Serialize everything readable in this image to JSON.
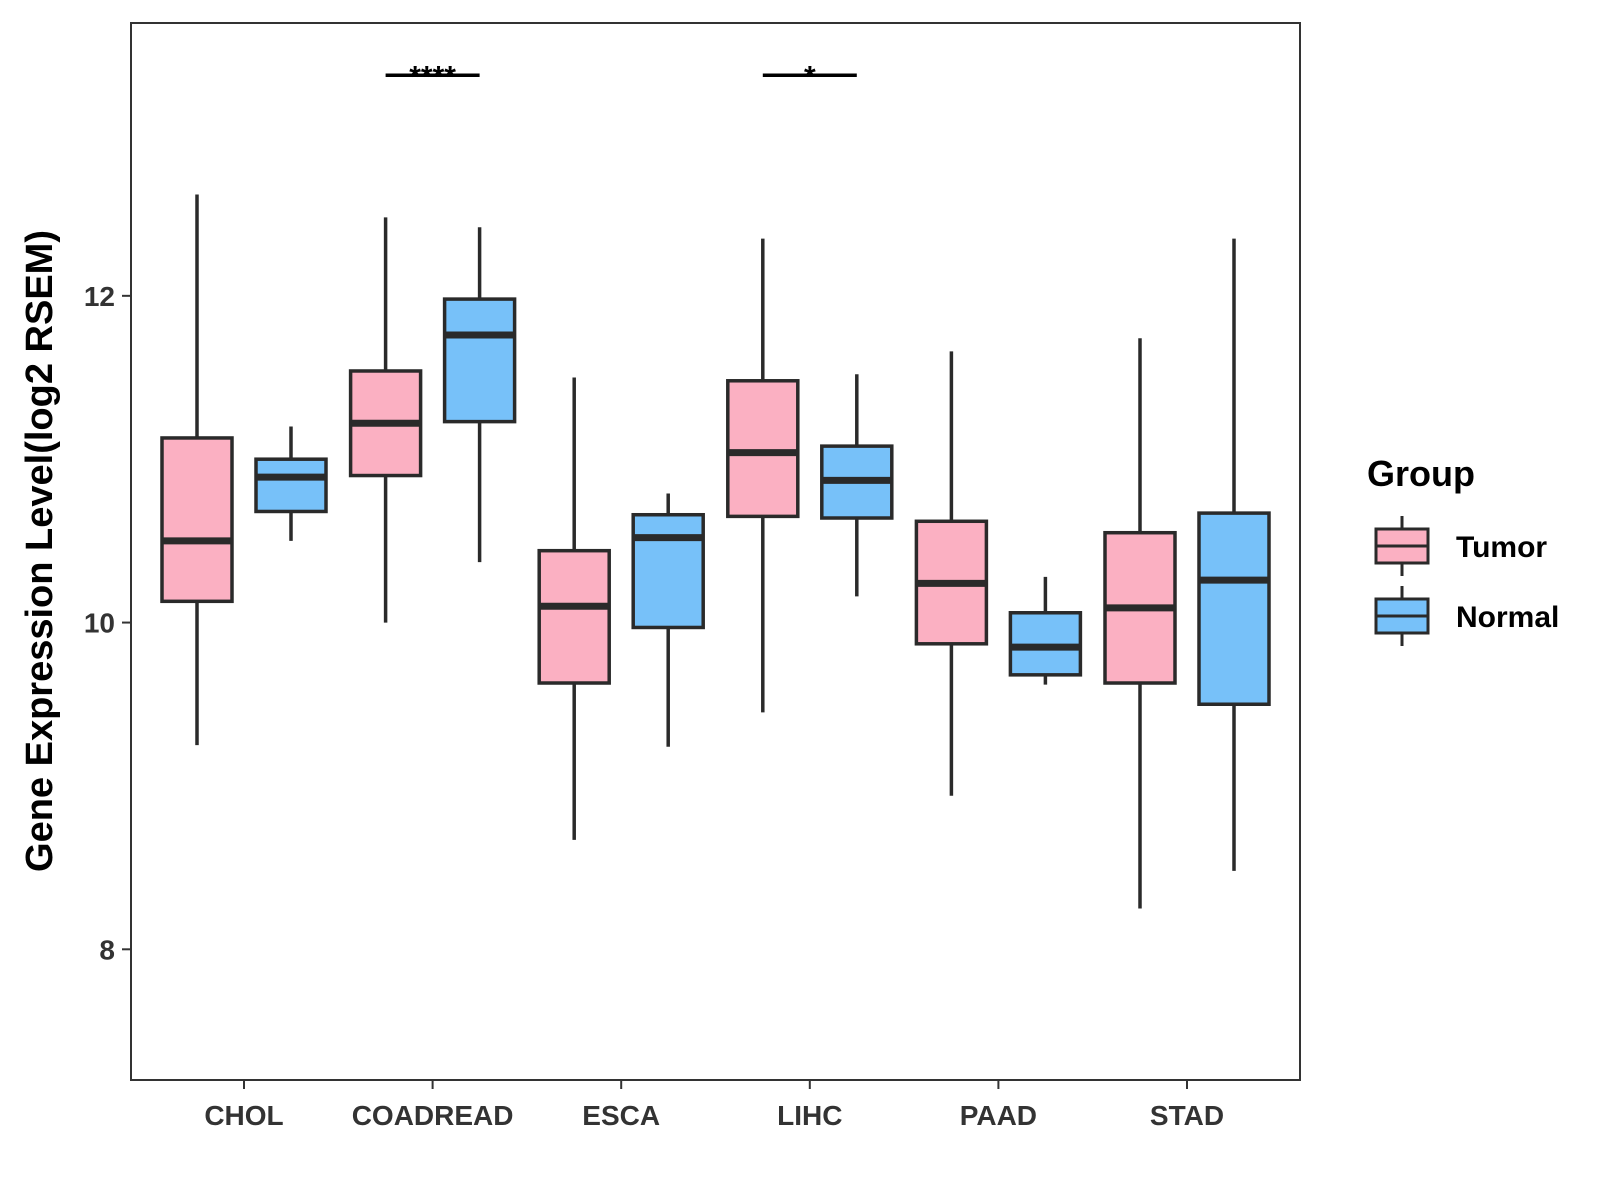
{
  "chart_data": {
    "type": "boxplot",
    "title": "",
    "xlabel": "",
    "ylabel": "Gene Expression Level(log2 RSEM)",
    "ylim": [
      7.2,
      13.67
    ],
    "yticks": [
      8,
      10,
      12
    ],
    "grid": false,
    "legend": {
      "title": "Group",
      "position": "right"
    },
    "categories": [
      "CHOL",
      "COADREAD",
      "ESCA",
      "LIHC",
      "PAAD",
      "STAD"
    ],
    "series": [
      {
        "name": "Tumor",
        "color": "#FBB0C2",
        "boxes": [
          {
            "whisker_low": 9.25,
            "q1": 10.13,
            "median": 10.5,
            "q3": 11.13,
            "whisker_high": 12.62
          },
          {
            "whisker_low": 10.0,
            "q1": 10.9,
            "median": 11.22,
            "q3": 11.54,
            "whisker_high": 12.48
          },
          {
            "whisker_low": 8.67,
            "q1": 9.63,
            "median": 10.1,
            "q3": 10.44,
            "whisker_high": 11.5
          },
          {
            "whisker_low": 9.45,
            "q1": 10.65,
            "median": 11.04,
            "q3": 11.48,
            "whisker_high": 12.35
          },
          {
            "whisker_low": 8.94,
            "q1": 9.87,
            "median": 10.24,
            "q3": 10.62,
            "whisker_high": 11.66
          },
          {
            "whisker_low": 8.25,
            "q1": 9.63,
            "median": 10.09,
            "q3": 10.55,
            "whisker_high": 11.74
          }
        ]
      },
      {
        "name": "Normal",
        "color": "#77C1F9",
        "boxes": [
          {
            "whisker_low": 10.5,
            "q1": 10.68,
            "median": 10.89,
            "q3": 11.0,
            "whisker_high": 11.2
          },
          {
            "whisker_low": 10.37,
            "q1": 11.23,
            "median": 11.76,
            "q3": 11.98,
            "whisker_high": 12.42
          },
          {
            "whisker_low": 9.24,
            "q1": 9.97,
            "median": 10.52,
            "q3": 10.66,
            "whisker_high": 10.79
          },
          {
            "whisker_low": 10.16,
            "q1": 10.64,
            "median": 10.87,
            "q3": 11.08,
            "whisker_high": 11.52
          },
          {
            "whisker_low": 9.62,
            "q1": 9.68,
            "median": 9.85,
            "q3": 10.06,
            "whisker_high": 10.28
          },
          {
            "whisker_low": 8.48,
            "q1": 9.5,
            "median": 10.26,
            "q3": 10.67,
            "whisker_high": 12.35
          }
        ]
      }
    ],
    "significance": [
      {
        "category": "COADREAD",
        "label": "****",
        "y": 13.35
      },
      {
        "category": "LIHC",
        "label": "*",
        "y": 13.35
      }
    ]
  },
  "colors": {
    "tumor_fill": "#FBB0C2",
    "normal_fill": "#77C1F9",
    "outline": "#2a2a2a"
  }
}
